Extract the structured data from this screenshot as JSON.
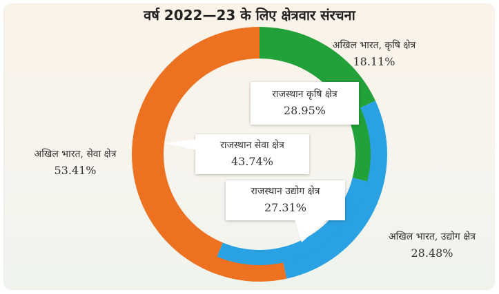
{
  "chart_data": {
    "type": "donut",
    "title": "वर्ष 2022—23 के लिए क्षेत्रवार संरचना",
    "series": [
      {
        "name": "अखिल भारत",
        "ring": "outer",
        "slices": [
          {
            "label": "अखिल भारत, कृषि क्षेत्र",
            "value": 18.11,
            "display": "18.11%",
            "color": "#22a03a"
          },
          {
            "label": "अखिल भारत, उद्योग क्षेत्र",
            "value": 28.48,
            "display": "28.48%",
            "color": "#2aa1e3"
          },
          {
            "label": "अखिल भारत, सेवा क्षेत्र",
            "value": 53.41,
            "display": "53.41%",
            "color": "#ec7221"
          }
        ]
      },
      {
        "name": "राजस्थान",
        "ring": "inner",
        "slices": [
          {
            "label": "राजस्थान कृषि क्षेत्र",
            "value": 28.95,
            "display": "28.95%",
            "color": "#22a03a"
          },
          {
            "label": "राजस्थान उद्योग क्षेत्र",
            "value": 27.31,
            "display": "27.31%",
            "color": "#2aa1e3"
          },
          {
            "label": "राजस्थान सेवा क्षेत्र",
            "value": 43.74,
            "display": "43.74%",
            "color": "#ec7221"
          }
        ]
      }
    ]
  }
}
